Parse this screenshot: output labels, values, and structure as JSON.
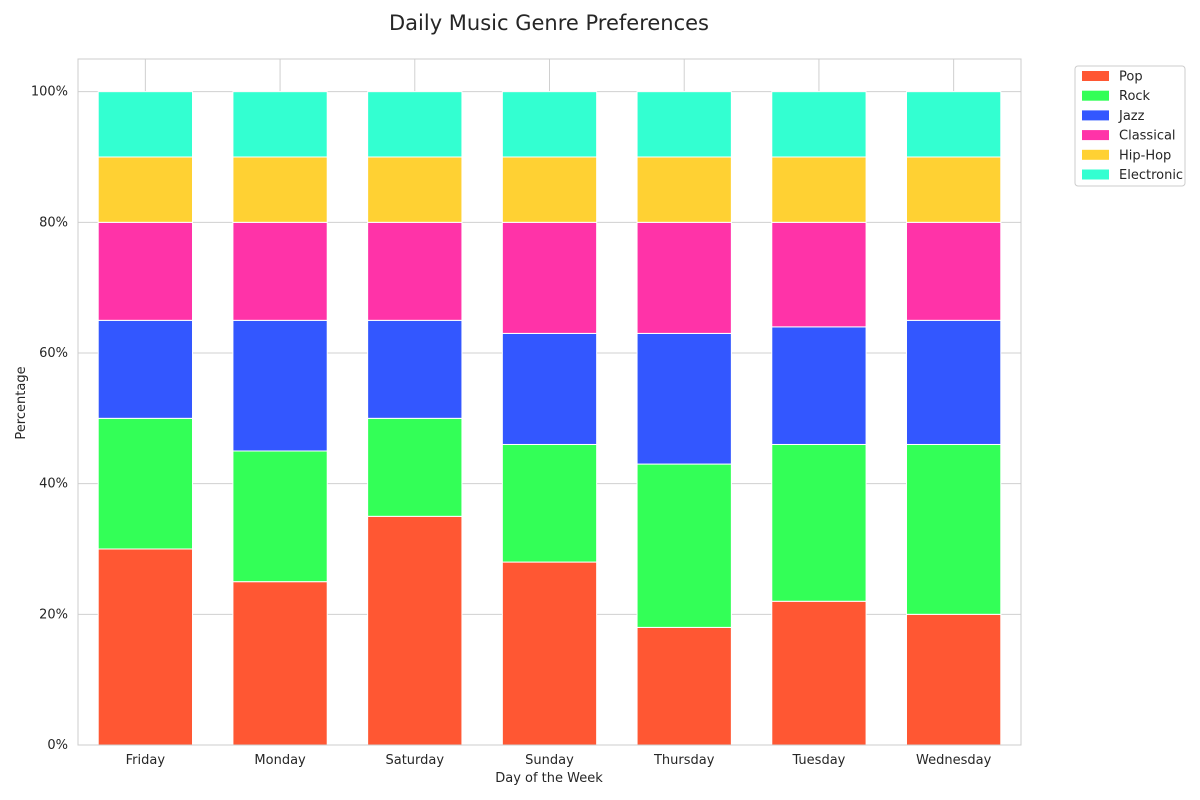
{
  "chart_data": {
    "type": "bar",
    "stacked": true,
    "title": "Daily Music Genre Preferences",
    "xlabel": "Day of the Week",
    "ylabel": "Percentage",
    "ylim": [
      0,
      105
    ],
    "yticks": [
      0,
      20,
      40,
      60,
      80,
      100
    ],
    "ytick_labels": [
      "0%",
      "20%",
      "40%",
      "60%",
      "80%",
      "100%"
    ],
    "grid": true,
    "legend_position": "outside-top-right",
    "categories": [
      "Friday",
      "Monday",
      "Saturday",
      "Sunday",
      "Thursday",
      "Tuesday",
      "Wednesday"
    ],
    "series": [
      {
        "name": "Pop",
        "color": "#ff5733",
        "values": [
          30,
          25,
          35,
          28,
          18,
          22,
          20
        ]
      },
      {
        "name": "Rock",
        "color": "#33ff57",
        "values": [
          20,
          20,
          15,
          18,
          25,
          24,
          26
        ]
      },
      {
        "name": "Jazz",
        "color": "#3357ff",
        "values": [
          15,
          20,
          15,
          17,
          20,
          18,
          19
        ]
      },
      {
        "name": "Classical",
        "color": "#ff33a8",
        "values": [
          15,
          15,
          15,
          17,
          17,
          16,
          15
        ]
      },
      {
        "name": "Hip-Hop",
        "color": "#ffd133",
        "values": [
          10,
          10,
          10,
          10,
          10,
          10,
          10
        ]
      },
      {
        "name": "Electronic",
        "color": "#33ffd1",
        "values": [
          10,
          10,
          10,
          10,
          10,
          10,
          10
        ]
      }
    ]
  }
}
